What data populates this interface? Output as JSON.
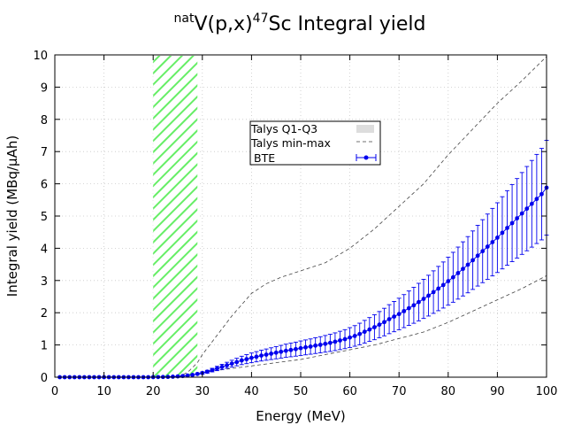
{
  "chart_data": {
    "type": "scatter",
    "title": {
      "sup1": "nat",
      "element": "V(p,x)",
      "sup2": "47",
      "rest": "Sc Integral yield"
    },
    "xlabel": "Energy (MeV)",
    "ylabel": "Integral yield (MBq/μAh)",
    "xlim": [
      0,
      100
    ],
    "ylim": [
      0,
      10
    ],
    "xticks": [
      0,
      10,
      20,
      30,
      40,
      50,
      60,
      70,
      80,
      90,
      100
    ],
    "yticks": [
      0,
      1,
      2,
      3,
      4,
      5,
      6,
      7,
      8,
      9,
      10
    ],
    "grid": true,
    "hatched_region": {
      "x_start": 20,
      "x_end": 29,
      "color": "#66ee66"
    },
    "legend": {
      "position": "top-center",
      "entries": [
        "Talys Q1-Q3",
        "Talys min-max",
        "BTE"
      ]
    },
    "series": [
      {
        "name": "Talys min-max upper",
        "style": "dashed",
        "color": "#444444",
        "x": [
          25,
          27,
          29,
          30,
          32,
          34,
          36,
          38,
          40,
          43,
          46,
          50,
          55,
          60,
          65,
          70,
          75,
          80,
          85,
          90,
          95,
          100
        ],
        "y": [
          0.0,
          0.15,
          0.45,
          0.7,
          1.1,
          1.5,
          1.9,
          2.25,
          2.6,
          2.9,
          3.1,
          3.3,
          3.55,
          4.0,
          4.6,
          5.3,
          6.0,
          6.9,
          7.7,
          8.5,
          9.2,
          9.95
        ]
      },
      {
        "name": "Talys min-max lower",
        "style": "dashed",
        "color": "#444444",
        "x": [
          25,
          30,
          35,
          40,
          45,
          50,
          55,
          60,
          65,
          70,
          75,
          80,
          85,
          90,
          95,
          100
        ],
        "y": [
          0.0,
          0.15,
          0.25,
          0.35,
          0.45,
          0.55,
          0.7,
          0.85,
          1.0,
          1.2,
          1.4,
          1.7,
          2.05,
          2.4,
          2.75,
          3.15
        ]
      },
      {
        "name": "BTE",
        "color": "#0000ee",
        "x": [
          1,
          2,
          3,
          4,
          5,
          6,
          7,
          8,
          9,
          10,
          11,
          12,
          13,
          14,
          15,
          16,
          17,
          18,
          19,
          20,
          21,
          22,
          23,
          24,
          25,
          26,
          27,
          28,
          29,
          30,
          31,
          32,
          33,
          34,
          35,
          36,
          37,
          38,
          39,
          40,
          41,
          42,
          43,
          44,
          45,
          46,
          47,
          48,
          49,
          50,
          51,
          52,
          53,
          54,
          55,
          56,
          57,
          58,
          59,
          60,
          61,
          62,
          63,
          64,
          65,
          66,
          67,
          68,
          69,
          70,
          71,
          72,
          73,
          74,
          75,
          76,
          77,
          78,
          79,
          80,
          81,
          82,
          83,
          84,
          85,
          86,
          87,
          88,
          89,
          90,
          91,
          92,
          93,
          94,
          95,
          96,
          97,
          98,
          99,
          100
        ],
        "y": [
          0,
          0,
          0,
          0,
          0,
          0,
          0,
          0,
          0,
          0,
          0,
          0,
          0,
          0,
          0,
          0,
          0,
          0,
          0,
          0.002,
          0.004,
          0.006,
          0.01,
          0.016,
          0.025,
          0.035,
          0.05,
          0.07,
          0.1,
          0.13,
          0.17,
          0.22,
          0.27,
          0.32,
          0.37,
          0.42,
          0.47,
          0.52,
          0.56,
          0.6,
          0.635,
          0.67,
          0.7,
          0.73,
          0.76,
          0.79,
          0.82,
          0.845,
          0.87,
          0.9,
          0.925,
          0.95,
          0.98,
          1.005,
          1.035,
          1.065,
          1.1,
          1.14,
          1.18,
          1.23,
          1.28,
          1.34,
          1.41,
          1.48,
          1.55,
          1.63,
          1.71,
          1.8,
          1.88,
          1.96,
          2.05,
          2.14,
          2.23,
          2.33,
          2.43,
          2.53,
          2.64,
          2.75,
          2.86,
          2.98,
          3.1,
          3.23,
          3.36,
          3.49,
          3.63,
          3.77,
          3.91,
          4.05,
          4.19,
          4.33,
          4.48,
          4.63,
          4.78,
          4.93,
          5.08,
          5.23,
          5.38,
          5.53,
          5.68,
          5.88
        ],
        "yerr_rel": 0.25
      }
    ]
  }
}
